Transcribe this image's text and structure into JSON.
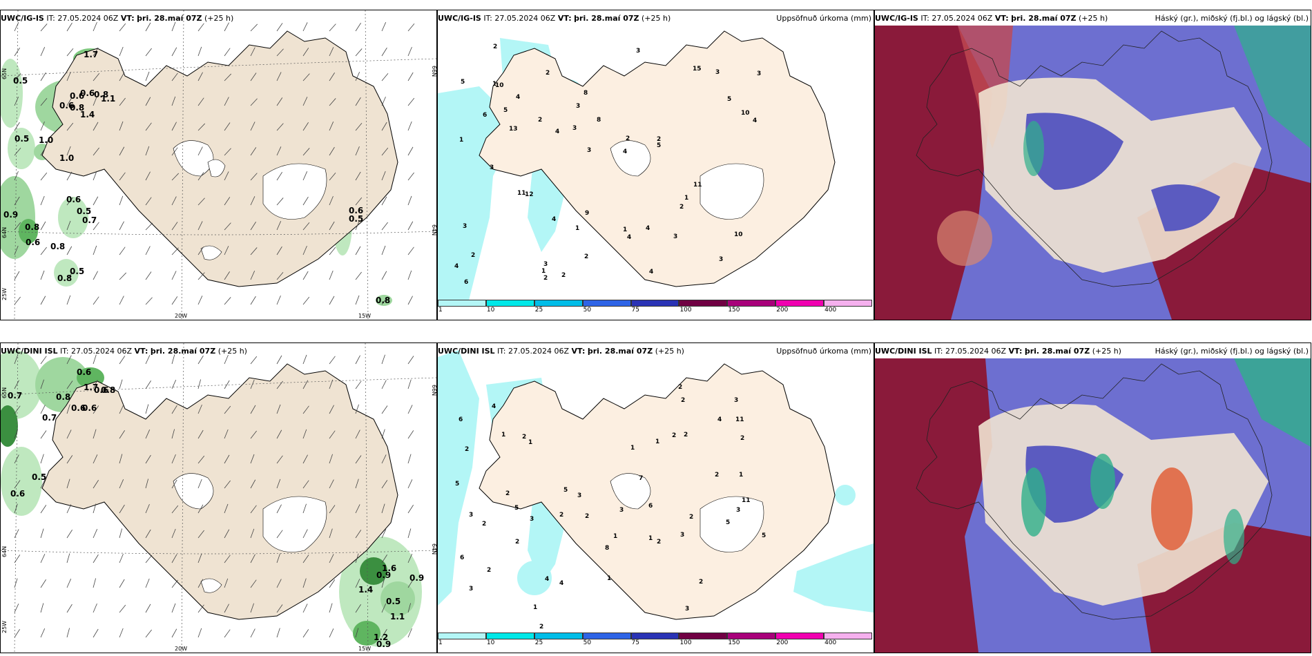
{
  "rows": [
    {
      "model": "UWC/IG-IS",
      "it_label": "IT:",
      "it_value": "27.05.2024 06Z",
      "vt_label": "VT:",
      "vt_value": "þri. 28.maí 07Z",
      "lead": "(+25 h)",
      "precip_title": "Uppsöfnuð úrkoma (mm)",
      "cloud_title": "Háský (gr.), miðský (fj.bl.) og lágský (bl.)",
      "wind_labels": [
        "0.5",
        "0.6",
        "0.8",
        "1.1",
        "1.7",
        "0.6",
        "0.6",
        "0.8",
        "1.4",
        "0.5",
        "1.0",
        "1.0",
        "0.6",
        "0.5",
        "0.7",
        "0.9",
        "0.8",
        "0.6",
        "0.8",
        "0.5",
        "0.8",
        "0.6",
        "0.5",
        "0.8"
      ],
      "precip_labels": [
        "2",
        "1",
        "2",
        "3",
        "4",
        "6",
        "1",
        "5",
        "3",
        "6",
        "4",
        "2",
        "10",
        "13",
        "12",
        "5",
        "2",
        "4",
        "11",
        "10",
        "4",
        "1",
        "2",
        "8",
        "15",
        "9",
        "3",
        "10",
        "11",
        "4",
        "8",
        "3",
        "2",
        "2",
        "4",
        "2",
        "3",
        "4",
        "5",
        "4",
        "5",
        "3",
        "1",
        "3",
        "1",
        "2",
        "1",
        "4",
        "3",
        "3",
        "3",
        "2",
        "3"
      ]
    },
    {
      "model": "UWC/DINI ISL",
      "it_label": "IT:",
      "it_value": "27.05.2024 06Z",
      "vt_label": "VT:",
      "vt_value": "þri. 28.maí 07Z",
      "lead": "(+25 h)",
      "precip_title": "Uppsöfnuð úrkoma (mm)",
      "cloud_title": "Háský (gr.), miðský (fj.bl.) og lágský (bl.)",
      "wind_labels": [
        "0.6",
        "0.7",
        "0.8",
        "1.7",
        "0.6",
        "0.8",
        "0.6",
        "0.6",
        "0.7",
        "0.5",
        "0.6",
        "1.6",
        "0.9",
        "0.9",
        "1.4",
        "0.5",
        "1.1",
        "1.2",
        "0.9"
      ],
      "precip_labels": [
        "2",
        "3",
        "2",
        "6",
        "4",
        "2",
        "3",
        "2",
        "1",
        "1",
        "2",
        "1",
        "2",
        "4",
        "5",
        "6",
        "3",
        "2",
        "5",
        "4",
        "3",
        "1",
        "2",
        "5",
        "11",
        "5",
        "2",
        "6",
        "7",
        "11",
        "3",
        "2",
        "8",
        "2",
        "1",
        "5",
        "3",
        "2",
        "4",
        "3",
        "1",
        "2",
        "1",
        "2",
        "3",
        "3",
        "2",
        "2",
        "2",
        "1",
        "2",
        "1"
      ]
    }
  ],
  "axis_labels": {
    "lon_20w": "20W",
    "lon_15w": "15W",
    "lat_66n": "66N",
    "lat_64n": "64N",
    "lat_65n_left": "65N",
    "lat_64n_left": "64N",
    "lat_25w": "25W"
  },
  "colorbar": {
    "ticks": [
      "1",
      "10",
      "25",
      "50",
      "75",
      "100",
      "150",
      "200",
      "400"
    ],
    "colors": [
      "#b3f6f6",
      "#00e8e8",
      "#00bde8",
      "#2e64e6",
      "#2a33b5",
      "#700043",
      "#a8007a",
      "#f000b0",
      "#f5b0ee"
    ]
  },
  "colors": {
    "land": "#efe3d2",
    "land_precip": "#fcefe1",
    "wind_green": "#34b34a",
    "precip_cyan": "#b3f6f6",
    "cloud_high": "#8a1a3a",
    "cloud_mid": "#5b5bc0",
    "cloud_low": "#2fb08a"
  }
}
